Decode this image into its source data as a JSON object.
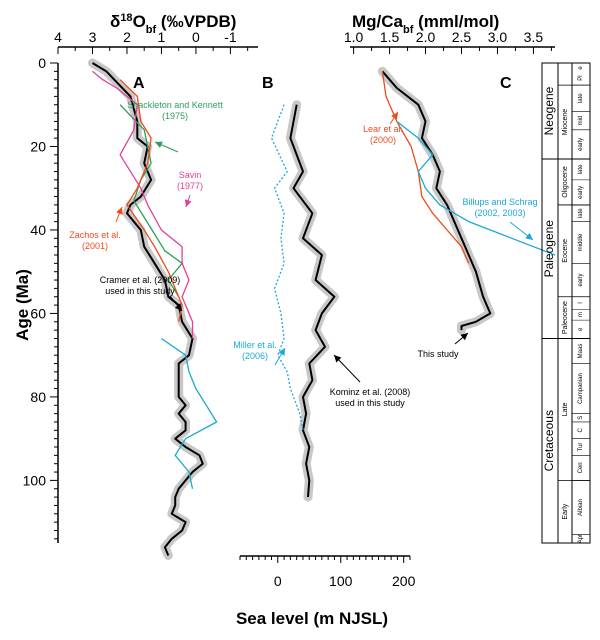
{
  "chart_data": {
    "type": "line",
    "panels": [
      {
        "label": "A",
        "xlabel": "δ18Obf (‰VPDB)",
        "xlabel_parts": {
          "main": "δ",
          "sup": "18",
          "O": "O",
          "sub": "bf",
          "rest": " (‰VPDB)"
        },
        "xticks": [
          "4",
          "3",
          "2",
          "1",
          "0",
          "-1"
        ],
        "xtick_values": [
          4,
          3,
          2,
          1,
          0,
          -1
        ],
        "xlim": [
          4,
          -1.8
        ],
        "series": [
          {
            "name": "Cramer et al. (2009) used in this study",
            "color": "#000000",
            "x": [
              3.0,
              2.6,
              1.9,
              1.7,
              1.7,
              1.4,
              1.5,
              1.3,
              1.6,
              1.9,
              2.0,
              1.6,
              1.5,
              1.2,
              0.9,
              0.8,
              0.5,
              0.4,
              0.1,
              0.2,
              0.5,
              0.5,
              0.5,
              0.3,
              0.5,
              0.3,
              0.3,
              0.6,
              0.3,
              -0.1,
              -0.2,
              0.1,
              0.3,
              0.5,
              0.6,
              0.6,
              0.7,
              0.3,
              0.4,
              0.7,
              0.9,
              0.8
            ],
            "y": [
              0,
              2,
              8,
              14,
              18,
              20,
              24,
              28,
              32,
              34,
              36,
              40,
              44,
              48,
              52,
              56,
              58,
              62,
              66,
              70,
              72,
              76,
              80,
              82,
              84,
              86,
              88,
              90,
              92,
              94,
              96,
              98,
              100,
              102,
              104,
              106,
              108,
              110,
              112,
              114,
              116,
              118
            ]
          },
          {
            "name": "Shackleton and Kennett (1975)",
            "color": "#2e9e5b",
            "x": [
              2.2,
              1.5,
              1.4,
              1.3,
              1.6,
              1.8,
              1.5,
              1.2,
              0.9,
              0.4,
              0.8,
              0.5
            ],
            "y": [
              10,
              16,
              20,
              24,
              28,
              33,
              37,
              41,
              45,
              48,
              52,
              56
            ]
          },
          {
            "name": "Savin (1977)",
            "color": "#e0409a",
            "x": [
              3.0,
              2.7,
              2.3,
              1.7,
              1.8,
              2.2,
              1.6,
              1.4,
              1.0,
              0.4,
              0.4,
              0.2,
              0.4,
              0.1,
              0.1
            ],
            "y": [
              2,
              4,
              6,
              10,
              16,
              22,
              30,
              34,
              40,
              44,
              48,
              52,
              56,
              62,
              66
            ]
          },
          {
            "name": "Zachos et al. (2001)",
            "color": "#f04a1c",
            "x": [
              2.2,
              1.7,
              1.6,
              1.3,
              1.4,
              1.7,
              2.0,
              1.5,
              1.2,
              0.8,
              0.6,
              0.4,
              0.5
            ],
            "y": [
              4,
              8,
              14,
              18,
              24,
              30,
              34,
              40,
              44,
              50,
              54,
              58,
              62
            ]
          },
          {
            "name": "Miller et al. (2006)",
            "color": "#19a9d9",
            "x": [
              1.0,
              0.3,
              0.2,
              0.0,
              -0.3,
              -0.6,
              0.3,
              0.6,
              0.2,
              0.1
            ],
            "y": [
              66,
              70,
              74,
              78,
              82,
              86,
              90,
              94,
              98,
              102
            ]
          }
        ],
        "annotations": [
          {
            "lines": [
              "Shackleton and Kennett",
              "(1975)"
            ],
            "color": "#2e9e5b"
          },
          {
            "lines": [
              "Savin",
              "(1977)"
            ],
            "color": "#e0409a"
          },
          {
            "lines": [
              "Zachos et al.",
              "(2001)"
            ],
            "color": "#f04a1c"
          },
          {
            "lines": [
              "Cramer et al. (2009)",
              "used in this study"
            ],
            "color": "#000000"
          }
        ]
      },
      {
        "label": "B",
        "xlabel": "Sea level (m NJSL)",
        "xticks": [
          "0",
          "100",
          "200"
        ],
        "xtick_values": [
          0,
          100,
          200
        ],
        "xlim": [
          -60,
          210
        ],
        "series": [
          {
            "name": "Kominz et al. (2008) used in this study",
            "color": "#000000",
            "x": [
              30,
              20,
              40,
              25,
              55,
              40,
              70,
              60,
              90,
              70,
              60,
              75,
              50,
              55,
              40,
              45,
              40,
              50,
              45,
              50,
              48
            ],
            "y": [
              10,
              18,
              26,
              30,
              36,
              42,
              46,
              52,
              56,
              60,
              64,
              68,
              72,
              76,
              80,
              84,
              88,
              92,
              96,
              100,
              104
            ]
          },
          {
            "name": "Miller et al. (2006)",
            "color": "#19a9d9",
            "x": [
              10,
              -10,
              15,
              -5,
              10,
              5,
              10,
              -5,
              5,
              10,
              0,
              15,
              20,
              35,
              40
            ],
            "y": [
              10,
              18,
              26,
              30,
              36,
              42,
              48,
              54,
              60,
              66,
              70,
              74,
              78,
              84,
              88
            ]
          }
        ],
        "annotations": [
          {
            "lines": [
              "Miller et al.",
              "(2006)"
            ],
            "color": "#19a9d9"
          },
          {
            "lines": [
              "Kominz et al. (2008)",
              "used in this study"
            ],
            "color": "#000000"
          }
        ]
      },
      {
        "label": "C",
        "xlabel": "Mg/Cabf (mml/mol)",
        "xlabel_parts": {
          "main": "Mg/Ca",
          "sub": "bf",
          "rest": " (mml/mol)"
        },
        "xticks": [
          "1.0",
          "1.5",
          "2.0",
          "2.5",
          "3.0",
          "3.5"
        ],
        "xtick_values": [
          1.0,
          1.5,
          2.0,
          2.5,
          3.0,
          3.5
        ],
        "xlim": [
          0.95,
          3.8
        ],
        "series": [
          {
            "name": "This study",
            "color": "#000000",
            "x": [
              1.4,
              1.6,
              1.9,
              2.0,
              1.95,
              2.1,
              2.2,
              2.15,
              2.3,
              2.4,
              2.5,
              2.6,
              2.7,
              2.75,
              2.8,
              2.85,
              2.9,
              2.7,
              2.5,
              2.5
            ],
            "y": [
              2,
              6,
              10,
              14,
              18,
              22,
              26,
              30,
              34,
              38,
              42,
              46,
              50,
              53,
              56,
              58,
              60,
              62,
              63,
              64
            ]
          },
          {
            "name": "Lear et al. (2000)",
            "color": "#f04a1c",
            "x": [
              1.4,
              1.45,
              1.6,
              1.8,
              1.9,
              1.95,
              2.1,
              2.3,
              2.5,
              2.6
            ],
            "y": [
              2,
              8,
              14,
              20,
              26,
              32,
              36,
              40,
              44,
              48
            ]
          },
          {
            "name": "Billups and Schrag (2002, 2003)",
            "color": "#19a9d9",
            "x": [
              1.6,
              1.9,
              2.1,
              1.9,
              2.0,
              2.2,
              2.6,
              3.2,
              3.8
            ],
            "y": [
              14,
              18,
              22,
              26,
              30,
              34,
              38,
              42,
              46
            ]
          }
        ],
        "annotations": [
          {
            "lines": [
              "Lear et al.",
              "(2000)"
            ],
            "color": "#f04a1c"
          },
          {
            "lines": [
              "Billups and Schrag",
              "(2002, 2003)"
            ],
            "color": "#19a9d9"
          },
          {
            "lines": [
              "This study"
            ],
            "color": "#000000"
          }
        ]
      }
    ],
    "yaxis": {
      "label": "Age (Ma)",
      "ticks": [
        "0",
        "20",
        "40",
        "60",
        "80",
        "100"
      ],
      "tick_values": [
        0,
        20,
        40,
        60,
        80,
        100
      ],
      "ylim": [
        0,
        115
      ],
      "inverted": true
    },
    "stratigraphy": {
      "periods": [
        {
          "name": "Neogene",
          "from": 0,
          "to": 23
        },
        {
          "name": "Paleogene",
          "from": 23,
          "to": 66
        },
        {
          "name": "Cretaceous",
          "from": 66,
          "to": 115
        }
      ],
      "epochs": [
        {
          "name": "Miocene",
          "from": 5.3,
          "to": 23
        },
        {
          "name": "Oligocene",
          "from": 23,
          "to": 34
        },
        {
          "name": "Eocene",
          "from": 34,
          "to": 56
        },
        {
          "name": "Paleocene",
          "from": 56,
          "to": 66
        },
        {
          "name": "Late",
          "from": 66,
          "to": 100
        },
        {
          "name": "Early",
          "from": 100,
          "to": 115
        }
      ],
      "stages": [
        {
          "name": "late",
          "from": 5.3,
          "to": 11.6
        },
        {
          "name": "mid",
          "from": 11.6,
          "to": 16
        },
        {
          "name": "early",
          "from": 16,
          "to": 23
        },
        {
          "name": "late",
          "from": 23,
          "to": 28
        },
        {
          "name": "early",
          "from": 28,
          "to": 34
        },
        {
          "name": "late",
          "from": 34,
          "to": 38
        },
        {
          "name": "middle",
          "from": 38,
          "to": 48
        },
        {
          "name": "early",
          "from": 48,
          "to": 56
        },
        {
          "name": "l",
          "from": 56,
          "to": 59
        },
        {
          "name": "m",
          "from": 59,
          "to": 61.6
        },
        {
          "name": "e",
          "from": 61.6,
          "to": 66
        },
        {
          "name": "Maas",
          "from": 66,
          "to": 72
        },
        {
          "name": "Campanian",
          "from": 72,
          "to": 84
        },
        {
          "name": "S",
          "from": 84,
          "to": 86
        },
        {
          "name": "C",
          "from": 86,
          "to": 90
        },
        {
          "name": "Tur",
          "from": 90,
          "to": 94
        },
        {
          "name": "Cen",
          "from": 94,
          "to": 100
        },
        {
          "name": "Albian",
          "from": 100,
          "to": 113
        },
        {
          "name": "Apt",
          "from": 113,
          "to": 115
        }
      ],
      "top_marks": [
        "e",
        "Pl"
      ]
    }
  }
}
